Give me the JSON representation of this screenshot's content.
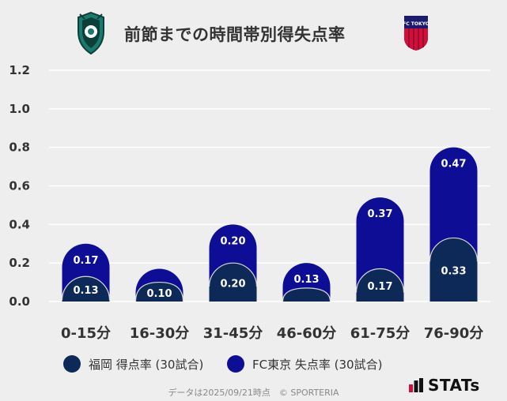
{
  "title": "前節までの時間帯別得失点率",
  "legend": {
    "fukuoka": "福岡 得点率 (30試合)",
    "fctokyo": "FC東京 失点率 (30試合)"
  },
  "footer": "データは2025/09/21時点　© SPORTERIA",
  "brand": "STATs",
  "emblem_text": "FC TOKYO",
  "colors": {
    "fukuoka": "#0d2957",
    "fctokyo": "#0d0d96",
    "background": "#eeeeee",
    "grid": "#ffffff",
    "axis_text": "#333333"
  },
  "chart_data": {
    "type": "bar",
    "title": "前節までの時間帯別得失点率",
    "categories": [
      "0-15分",
      "16-30分",
      "31-45分",
      "46-60分",
      "61-75分",
      "76-90分"
    ],
    "series": [
      {
        "name": "福岡 得点率 (30試合)",
        "values": [
          0.13,
          0.1,
          0.2,
          0.07,
          0.17,
          0.33
        ],
        "labels": [
          "0.13",
          "0.10",
          "0.20",
          "",
          "0.17",
          "0.33"
        ]
      },
      {
        "name": "FC東京 失点率 (30試合)",
        "values": [
          0.17,
          0.07,
          0.2,
          0.13,
          0.37,
          0.47
        ],
        "labels": [
          "0.17",
          "",
          "0.20",
          "0.13",
          "0.37",
          "0.47"
        ]
      }
    ],
    "stacked": true,
    "ylim": [
      0,
      1.2
    ],
    "yticks": [
      "0.0",
      "0.2",
      "0.4",
      "0.6",
      "0.8",
      "1.0",
      "1.2"
    ],
    "xlabel": "",
    "ylabel": "",
    "grid": true
  }
}
